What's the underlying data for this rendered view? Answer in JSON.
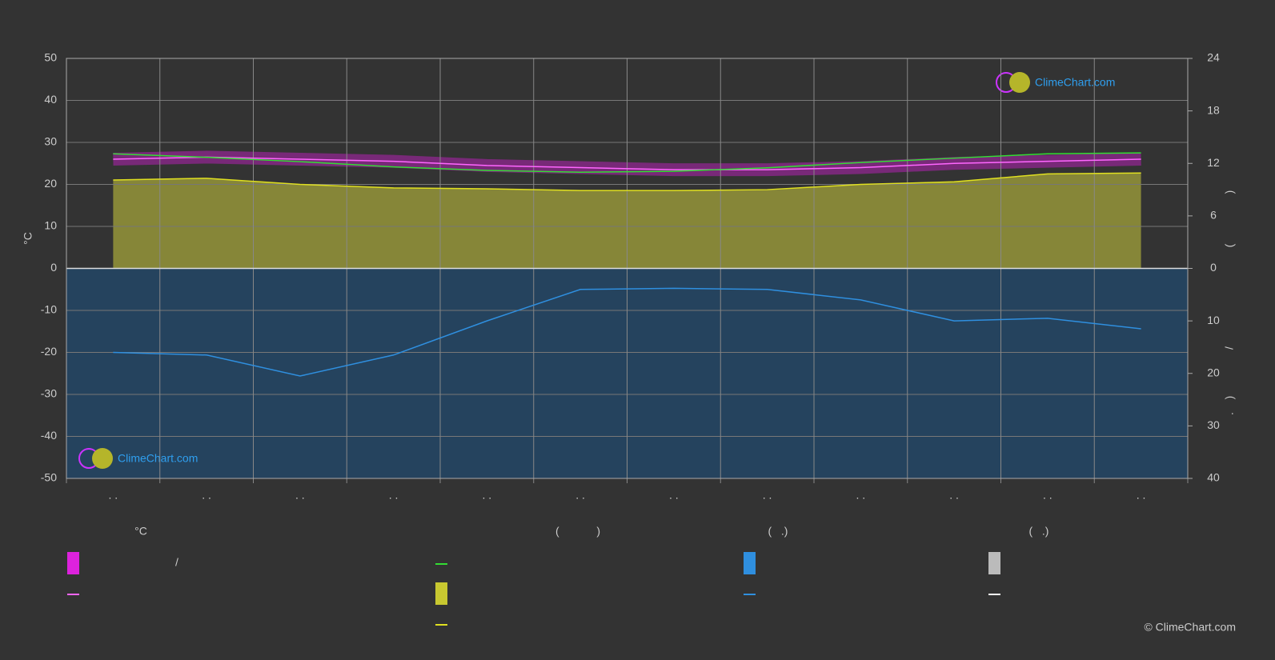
{
  "logo_text": "ClimeChart.com",
  "copyright": "© ClimeChart.com",
  "chart_data": {
    "type": "line",
    "y_label": "°C",
    "categories": [
      ". .",
      ". .",
      ". .",
      ". .",
      ". .",
      ". .",
      ". .",
      ". .",
      ". .",
      ". .",
      ". .",
      ". ."
    ],
    "ylim": [
      -50,
      50
    ],
    "yticks": [
      -50,
      -40,
      -30,
      -20,
      -10,
      0,
      10,
      20,
      30,
      40,
      50
    ],
    "grid": true,
    "sunshine_axis": {
      "lim": [
        0,
        24
      ],
      "ticks": [
        0,
        6,
        12,
        18,
        24
      ],
      "label_parts": [
        ")",
        "("
      ]
    },
    "precipitation_axis": {
      "lim": [
        0,
        40
      ],
      "ticks": [
        10,
        20,
        30,
        40
      ],
      "label_parts": [
        "/",
        ")",
        "."
      ]
    },
    "series": [
      {
        "color": "#ff66ff",
        "axis": "temperature",
        "values": [
          26,
          26.5,
          26,
          25.5,
          24.5,
          24,
          23.5,
          23.5,
          24,
          25,
          25.5,
          26
        ]
      },
      {
        "color": "#33dd33",
        "axis": "sunshine",
        "values": [
          13.1,
          12.7,
          12.2,
          11.6,
          11.2,
          11.0,
          11.1,
          11.5,
          12.1,
          12.6,
          13.1,
          13.2
        ]
      },
      {
        "color": "#e0e020",
        "axis": "sunshine",
        "values": [
          10.1,
          10.3,
          9.6,
          9.2,
          9.1,
          8.9,
          8.9,
          9.0,
          9.6,
          9.9,
          10.8,
          10.9
        ]
      },
      {
        "color": "#2f8fdf",
        "axis": "precipitation",
        "values": [
          16,
          16.5,
          20.5,
          16.5,
          10,
          4,
          3.8,
          4,
          6,
          10,
          9.5,
          11.5
        ]
      }
    ],
    "legend": {
      "headers": [
        "°C",
        "(            )",
        "(   .)",
        "(   .)"
      ],
      "items": [
        "/"
      ]
    }
  }
}
